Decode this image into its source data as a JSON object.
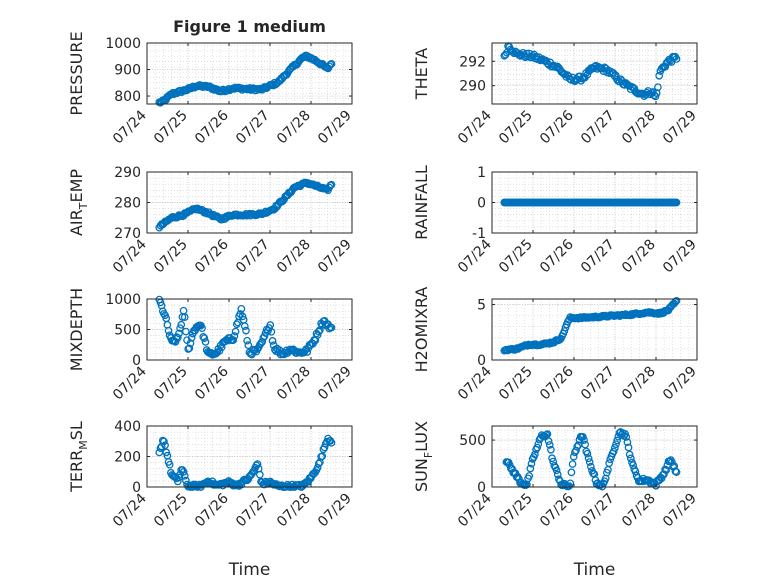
{
  "chart_data": [
    {
      "type": "scatter",
      "title": "Figure 1 medium",
      "ylabel_main": "PRESSURE",
      "ylabel_sub": "",
      "ylabel_tail": "",
      "ylim": [
        770,
        1000
      ],
      "yticks": [
        800,
        900,
        1000
      ],
      "xlim": [
        "07/24",
        "07/29"
      ],
      "xticks": [
        "07/24",
        "07/25",
        "07/26",
        "07/27",
        "07/28",
        "07/29"
      ],
      "xlabel": "",
      "marker": "circle-open",
      "color": "#0072BD",
      "grid": true,
      "series": [
        {
          "anchors": [
            [
              0.3,
              775
            ],
            [
              0.4,
              780
            ],
            [
              0.6,
              808
            ],
            [
              1.0,
              825
            ],
            [
              1.2,
              838
            ],
            [
              1.5,
              835
            ],
            [
              1.8,
              818
            ],
            [
              2.1,
              830
            ],
            [
              2.5,
              826
            ],
            [
              2.8,
              825
            ],
            [
              3.2,
              852
            ],
            [
              3.5,
              900
            ],
            [
              3.8,
              945
            ],
            [
              3.9,
              950
            ],
            [
              4.1,
              935
            ],
            [
              4.3,
              915
            ],
            [
              4.4,
              902
            ],
            [
              4.5,
              925
            ]
          ],
          "n": 155,
          "noise": 5
        }
      ]
    },
    {
      "type": "scatter",
      "title": "",
      "ylabel_main": "THETA",
      "ylabel_sub": "",
      "ylabel_tail": "",
      "ylim": [
        288.5,
        293.5
      ],
      "yticks": [
        290,
        292
      ],
      "xlim": [
        "07/24",
        "07/29"
      ],
      "xticks": [
        "07/24",
        "07/25",
        "07/26",
        "07/27",
        "07/28",
        "07/29"
      ],
      "xlabel": "",
      "marker": "circle-open",
      "color": "#0072BD",
      "grid": true,
      "series": [
        {
          "anchors": [
            [
              0.3,
              292.3
            ],
            [
              0.4,
              293.3
            ],
            [
              0.6,
              292.6
            ],
            [
              1.0,
              292.4
            ],
            [
              1.3,
              292.0
            ],
            [
              1.6,
              291.5
            ],
            [
              1.9,
              290.5
            ],
            [
              2.2,
              290.6
            ],
            [
              2.5,
              291.5
            ],
            [
              2.8,
              291.3
            ],
            [
              3.2,
              290.2
            ],
            [
              3.5,
              289.6
            ],
            [
              3.7,
              289.3
            ],
            [
              3.9,
              289.5
            ],
            [
              4.0,
              289.0
            ],
            [
              4.1,
              291.2
            ],
            [
              4.3,
              292.0
            ],
            [
              4.5,
              292.3
            ]
          ],
          "n": 140,
          "noise": 0.2
        }
      ]
    },
    {
      "type": "scatter",
      "title": "",
      "ylabel_main": "AIR",
      "ylabel_sub": "T",
      "ylabel_tail": "EMP",
      "ylim": [
        270,
        290
      ],
      "yticks": [
        270,
        280,
        290
      ],
      "xlim": [
        "07/24",
        "07/29"
      ],
      "xticks": [
        "07/24",
        "07/25",
        "07/26",
        "07/27",
        "07/28",
        "07/29"
      ],
      "xlabel": "",
      "marker": "circle-open",
      "color": "#0072BD",
      "grid": true,
      "series": [
        {
          "anchors": [
            [
              0.3,
              272
            ],
            [
              0.6,
              275
            ],
            [
              0.9,
              276
            ],
            [
              1.2,
              278
            ],
            [
              1.5,
              276.5
            ],
            [
              1.8,
              274.5
            ],
            [
              2.1,
              276
            ],
            [
              2.5,
              276
            ],
            [
              2.8,
              276.3
            ],
            [
              3.1,
              278
            ],
            [
              3.4,
              282
            ],
            [
              3.6,
              285
            ],
            [
              3.9,
              286.5
            ],
            [
              4.2,
              285
            ],
            [
              4.4,
              284
            ],
            [
              4.5,
              286
            ]
          ],
          "n": 150,
          "noise": 0.4
        }
      ]
    },
    {
      "type": "scatter",
      "title": "",
      "ylabel_main": "RAINFALL",
      "ylabel_sub": "",
      "ylabel_tail": "",
      "ylim": [
        -1,
        1
      ],
      "yticks": [
        -1,
        0,
        1
      ],
      "xlim": [
        "07/24",
        "07/29"
      ],
      "xticks": [
        "07/24",
        "07/25",
        "07/26",
        "07/27",
        "07/28",
        "07/29"
      ],
      "xlabel": "",
      "marker": "circle-open",
      "color": "#0072BD",
      "grid": true,
      "series": [
        {
          "anchors": [
            [
              0.3,
              0
            ],
            [
              4.5,
              0
            ]
          ],
          "n": 160,
          "noise": 0
        }
      ]
    },
    {
      "type": "scatter",
      "title": "",
      "ylabel_main": "MIXDEPTH",
      "ylabel_sub": "",
      "ylabel_tail": "",
      "ylim": [
        0,
        1000
      ],
      "yticks": [
        0,
        500,
        1000
      ],
      "xlim": [
        "07/24",
        "07/29"
      ],
      "xticks": [
        "07/24",
        "07/25",
        "07/26",
        "07/27",
        "07/28",
        "07/29"
      ],
      "xlabel": "",
      "marker": "circle-open",
      "color": "#0072BD",
      "grid": true,
      "series": [
        {
          "anchors": [
            [
              0.3,
              980
            ],
            [
              0.45,
              700
            ],
            [
              0.6,
              280
            ],
            [
              0.75,
              350
            ],
            [
              0.9,
              800
            ],
            [
              1.0,
              150
            ],
            [
              1.15,
              500
            ],
            [
              1.3,
              600
            ],
            [
              1.5,
              80
            ],
            [
              1.7,
              120
            ],
            [
              1.9,
              300
            ],
            [
              2.1,
              350
            ],
            [
              2.3,
              830
            ],
            [
              2.4,
              500
            ],
            [
              2.5,
              120
            ],
            [
              2.7,
              150
            ],
            [
              2.85,
              350
            ],
            [
              3.0,
              600
            ],
            [
              3.1,
              200
            ],
            [
              3.3,
              100
            ],
            [
              3.5,
              180
            ],
            [
              3.7,
              120
            ],
            [
              3.9,
              150
            ],
            [
              4.1,
              350
            ],
            [
              4.3,
              650
            ],
            [
              4.5,
              500
            ]
          ],
          "n": 150,
          "noise": 40
        }
      ]
    },
    {
      "type": "scatter",
      "title": "",
      "ylabel_main": "H2OMIXRA",
      "ylabel_sub": "",
      "ylabel_tail": "",
      "ylim": [
        0,
        5.5
      ],
      "yticks": [
        0,
        5
      ],
      "xlim": [
        "07/24",
        "07/29"
      ],
      "xticks": [
        "07/24",
        "07/25",
        "07/26",
        "07/27",
        "07/28",
        "07/29"
      ],
      "xlabel": "",
      "marker": "circle-open",
      "color": "#0072BD",
      "grid": true,
      "series": [
        {
          "anchors": [
            [
              0.3,
              0.9
            ],
            [
              0.6,
              1.0
            ],
            [
              0.9,
              1.4
            ],
            [
              1.2,
              1.4
            ],
            [
              1.5,
              1.6
            ],
            [
              1.7,
              2.0
            ],
            [
              1.8,
              3.0
            ],
            [
              1.9,
              3.8
            ],
            [
              2.2,
              3.8
            ],
            [
              2.6,
              3.9
            ],
            [
              3.0,
              4.0
            ],
            [
              3.4,
              4.1
            ],
            [
              3.8,
              4.3
            ],
            [
              4.1,
              4.2
            ],
            [
              4.3,
              4.5
            ],
            [
              4.5,
              5.3
            ]
          ],
          "n": 150,
          "noise": 0.08
        }
      ]
    },
    {
      "type": "scatter",
      "title": "",
      "ylabel_main": "TERR",
      "ylabel_sub": "M",
      "ylabel_tail": "SL",
      "ylim": [
        0,
        400
      ],
      "yticks": [
        0,
        200,
        400
      ],
      "xlim": [
        "07/24",
        "07/29"
      ],
      "xticks": [
        "07/24",
        "07/25",
        "07/26",
        "07/27",
        "07/28",
        "07/29"
      ],
      "xlabel": "Time",
      "marker": "circle-open",
      "color": "#0072BD",
      "grid": true,
      "series": [
        {
          "anchors": [
            [
              0.3,
              220
            ],
            [
              0.4,
              320
            ],
            [
              0.5,
              200
            ],
            [
              0.6,
              80
            ],
            [
              0.75,
              40
            ],
            [
              0.85,
              120
            ],
            [
              1.0,
              5
            ],
            [
              1.3,
              5
            ],
            [
              1.5,
              40
            ],
            [
              1.7,
              10
            ],
            [
              2.0,
              30
            ],
            [
              2.2,
              10
            ],
            [
              2.5,
              60
            ],
            [
              2.7,
              150
            ],
            [
              2.8,
              20
            ],
            [
              3.0,
              30
            ],
            [
              3.2,
              5
            ],
            [
              3.5,
              5
            ],
            [
              3.8,
              5
            ],
            [
              4.0,
              60
            ],
            [
              4.2,
              150
            ],
            [
              4.4,
              320
            ],
            [
              4.5,
              300
            ]
          ],
          "n": 150,
          "noise": 12
        }
      ]
    },
    {
      "type": "scatter",
      "title": "",
      "ylabel_main": "SUN",
      "ylabel_sub": "F",
      "ylabel_tail": "LUX",
      "ylim": [
        0,
        650
      ],
      "yticks": [
        0,
        500
      ],
      "xlim": [
        "07/24",
        "07/29"
      ],
      "xticks": [
        "07/24",
        "07/25",
        "07/26",
        "07/27",
        "07/28",
        "07/29"
      ],
      "xlabel": "Time",
      "marker": "circle-open",
      "color": "#0072BD",
      "grid": true,
      "series": [
        {
          "anchors": [
            [
              0.35,
              280
            ],
            [
              0.5,
              180
            ],
            [
              0.7,
              50
            ],
            [
              0.85,
              20
            ],
            [
              1.0,
              300
            ],
            [
              1.2,
              540
            ],
            [
              1.35,
              560
            ],
            [
              1.5,
              250
            ],
            [
              1.7,
              20
            ],
            [
              1.9,
              10
            ],
            [
              2.0,
              350
            ],
            [
              2.2,
              560
            ],
            [
              2.35,
              300
            ],
            [
              2.55,
              50
            ],
            [
              2.7,
              0
            ],
            [
              2.9,
              300
            ],
            [
              3.1,
              580
            ],
            [
              3.25,
              560
            ],
            [
              3.45,
              200
            ],
            [
              3.6,
              60
            ],
            [
              3.75,
              80
            ],
            [
              4.0,
              30
            ],
            [
              4.2,
              150
            ],
            [
              4.35,
              300
            ],
            [
              4.5,
              150
            ]
          ],
          "n": 150,
          "noise": 20
        }
      ]
    }
  ]
}
